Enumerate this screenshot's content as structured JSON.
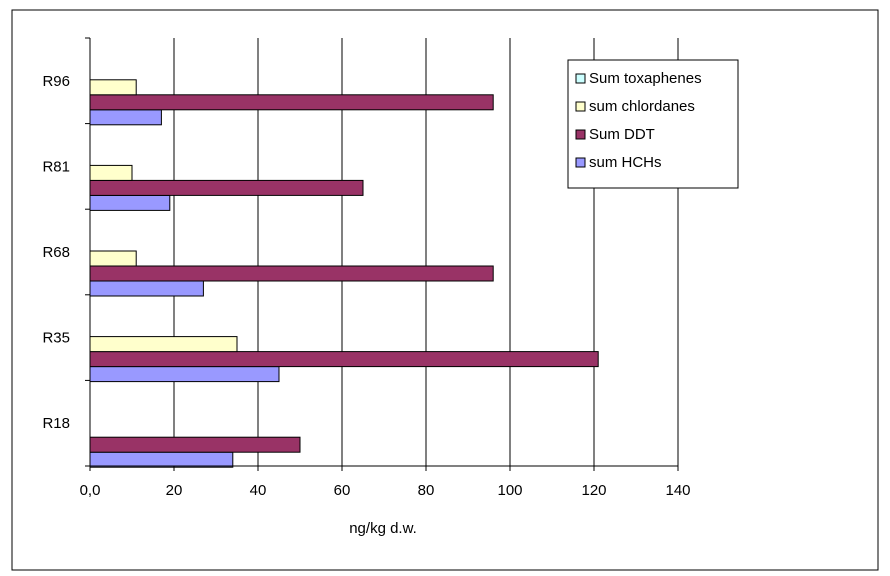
{
  "chart_data": {
    "type": "bar",
    "orientation": "horizontal",
    "title": "",
    "xlabel": "ng/kg d.w.",
    "ylabel": "",
    "xlim": [
      0,
      140
    ],
    "x_ticks": [
      "0,0",
      "20",
      "40",
      "60",
      "80",
      "100",
      "120",
      "140"
    ],
    "x_tick_values": [
      0,
      20,
      40,
      60,
      80,
      100,
      120,
      140
    ],
    "categories": [
      "R18",
      "R35",
      "R68",
      "R81",
      "R96"
    ],
    "grid": "vertical",
    "legend_position": "top-right",
    "series": [
      {
        "name": "sum HCHs",
        "color": "#9999ff",
        "values": [
          34,
          45,
          27,
          19,
          17
        ]
      },
      {
        "name": "Sum DDT",
        "color": "#993366",
        "values": [
          50,
          121,
          96,
          65,
          96
        ]
      },
      {
        "name": "sum chlordanes",
        "color": "#ffffcc",
        "values": [
          0,
          35,
          11,
          10,
          11
        ]
      },
      {
        "name": "Sum toxaphenes",
        "color": "#ccffff",
        "values": [
          0,
          0,
          0,
          0,
          0
        ]
      }
    ],
    "legend_order": [
      "Sum toxaphenes",
      "sum chlordanes",
      "Sum DDT",
      "sum HCHs"
    ]
  }
}
